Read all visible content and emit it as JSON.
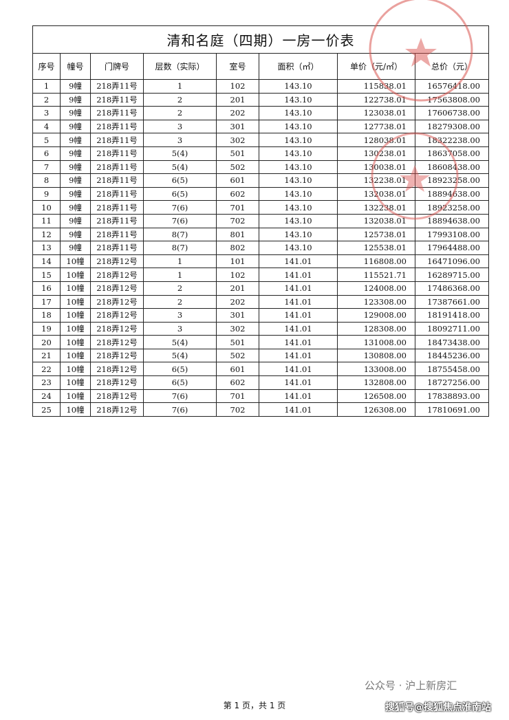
{
  "table": {
    "title": "清和名庭（四期）一房一价表",
    "headers": [
      "序号",
      "幢号",
      "门牌号",
      "层数（实际）",
      "室号",
      "面积（㎡）",
      "单价（元/㎡）",
      "总价（元）"
    ],
    "rows": [
      [
        "1",
        "9幢",
        "218弄11号",
        "1",
        "102",
        "143.10",
        "115838.01",
        "16576418.00"
      ],
      [
        "2",
        "9幢",
        "218弄11号",
        "2",
        "201",
        "143.10",
        "122738.01",
        "17563808.00"
      ],
      [
        "3",
        "9幢",
        "218弄11号",
        "2",
        "202",
        "143.10",
        "123038.01",
        "17606738.00"
      ],
      [
        "4",
        "9幢",
        "218弄11号",
        "3",
        "301",
        "143.10",
        "127738.01",
        "18279308.00"
      ],
      [
        "5",
        "9幢",
        "218弄11号",
        "3",
        "302",
        "143.10",
        "128038.01",
        "18322238.00"
      ],
      [
        "6",
        "9幢",
        "218弄11号",
        "5(4)",
        "501",
        "143.10",
        "130238.01",
        "18637058.00"
      ],
      [
        "7",
        "9幢",
        "218弄11号",
        "5(4)",
        "502",
        "143.10",
        "130038.01",
        "18608438.00"
      ],
      [
        "8",
        "9幢",
        "218弄11号",
        "6(5)",
        "601",
        "143.10",
        "132238.01",
        "18923258.00"
      ],
      [
        "9",
        "9幢",
        "218弄11号",
        "6(5)",
        "602",
        "143.10",
        "132038.01",
        "18894638.00"
      ],
      [
        "10",
        "9幢",
        "218弄11号",
        "7(6)",
        "701",
        "143.10",
        "132238.01",
        "18923258.00"
      ],
      [
        "11",
        "9幢",
        "218弄11号",
        "7(6)",
        "702",
        "143.10",
        "132038.01",
        "18894638.00"
      ],
      [
        "12",
        "9幢",
        "218弄11号",
        "8(7)",
        "801",
        "143.10",
        "125738.01",
        "17993108.00"
      ],
      [
        "13",
        "9幢",
        "218弄11号",
        "8(7)",
        "802",
        "143.10",
        "125538.01",
        "17964488.00"
      ],
      [
        "14",
        "10幢",
        "218弄12号",
        "1",
        "101",
        "141.01",
        "116808.00",
        "16471096.00"
      ],
      [
        "15",
        "10幢",
        "218弄12号",
        "1",
        "102",
        "141.01",
        "115521.71",
        "16289715.00"
      ],
      [
        "16",
        "10幢",
        "218弄12号",
        "2",
        "201",
        "141.01",
        "124008.00",
        "17486368.00"
      ],
      [
        "17",
        "10幢",
        "218弄12号",
        "2",
        "202",
        "141.01",
        "123308.00",
        "17387661.00"
      ],
      [
        "18",
        "10幢",
        "218弄12号",
        "3",
        "301",
        "141.01",
        "129008.00",
        "18191418.00"
      ],
      [
        "19",
        "10幢",
        "218弄12号",
        "3",
        "302",
        "141.01",
        "128308.00",
        "18092711.00"
      ],
      [
        "20",
        "10幢",
        "218弄12号",
        "5(4)",
        "501",
        "141.01",
        "131008.00",
        "18473438.00"
      ],
      [
        "21",
        "10幢",
        "218弄12号",
        "5(4)",
        "502",
        "141.01",
        "130808.00",
        "18445236.00"
      ],
      [
        "22",
        "10幢",
        "218弄12号",
        "6(5)",
        "601",
        "141.01",
        "133008.00",
        "18755458.00"
      ],
      [
        "23",
        "10幢",
        "218弄12号",
        "6(5)",
        "602",
        "141.01",
        "132808.00",
        "18727256.00"
      ],
      [
        "24",
        "10幢",
        "218弄12号",
        "7(6)",
        "701",
        "141.01",
        "126508.00",
        "17838893.00"
      ],
      [
        "25",
        "10幢",
        "218弄12号",
        "7(6)",
        "702",
        "141.01",
        "126308.00",
        "17810691.00"
      ]
    ]
  },
  "footer": {
    "page": "第 1 页，共 1 页"
  },
  "watermark": {
    "account": "公众号 · 沪上新房汇",
    "source": "搜狐号@搜狐焦点淮南站"
  }
}
